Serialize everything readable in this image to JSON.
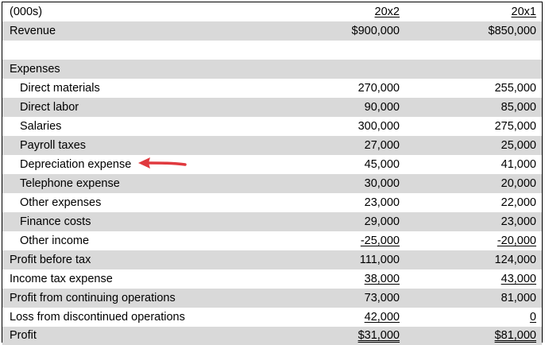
{
  "statement": {
    "header": {
      "label": "(000s)",
      "col_20x2": "20x2",
      "col_20x1": "20x1"
    },
    "revenue": {
      "label": "Revenue",
      "v2": "$900,000",
      "v1": "$850,000"
    },
    "expenses_heading": "Expenses",
    "expense_rows": [
      {
        "label": "Direct materials",
        "v2": "270,000",
        "v1": "255,000"
      },
      {
        "label": "Direct labor",
        "v2": "90,000",
        "v1": "85,000"
      },
      {
        "label": "Salaries",
        "v2": "300,000",
        "v1": "275,000"
      },
      {
        "label": "Payroll taxes",
        "v2": "27,000",
        "v1": "25,000"
      },
      {
        "label": "Depreciation expense",
        "v2": "45,000",
        "v1": "41,000"
      },
      {
        "label": "Telephone expense",
        "v2": "30,000",
        "v1": "20,000"
      },
      {
        "label": "Other expenses",
        "v2": "23,000",
        "v1": "22,000"
      },
      {
        "label": "Finance costs",
        "v2": "29,000",
        "v1": "23,000"
      },
      {
        "label": "Other income",
        "v2": "-25,000",
        "v1": "-20,000"
      }
    ],
    "profit_before_tax": {
      "label": "Profit before tax",
      "v2": "111,000",
      "v1": "124,000"
    },
    "income_tax": {
      "label": "Income tax expense",
      "v2": "38,000",
      "v1": "43,000"
    },
    "continuing": {
      "label": "Profit from continuing operations",
      "v2": "73,000",
      "v1": "81,000"
    },
    "discontinued": {
      "label": "Loss from discontinued operations",
      "v2": "42,000",
      "v1": "0"
    },
    "profit": {
      "label": "Profit",
      "v2": "$31,000",
      "v1": "$81,000"
    }
  },
  "annotation": {
    "arrow_color": "#e0393e",
    "points_to": "Depreciation expense"
  }
}
